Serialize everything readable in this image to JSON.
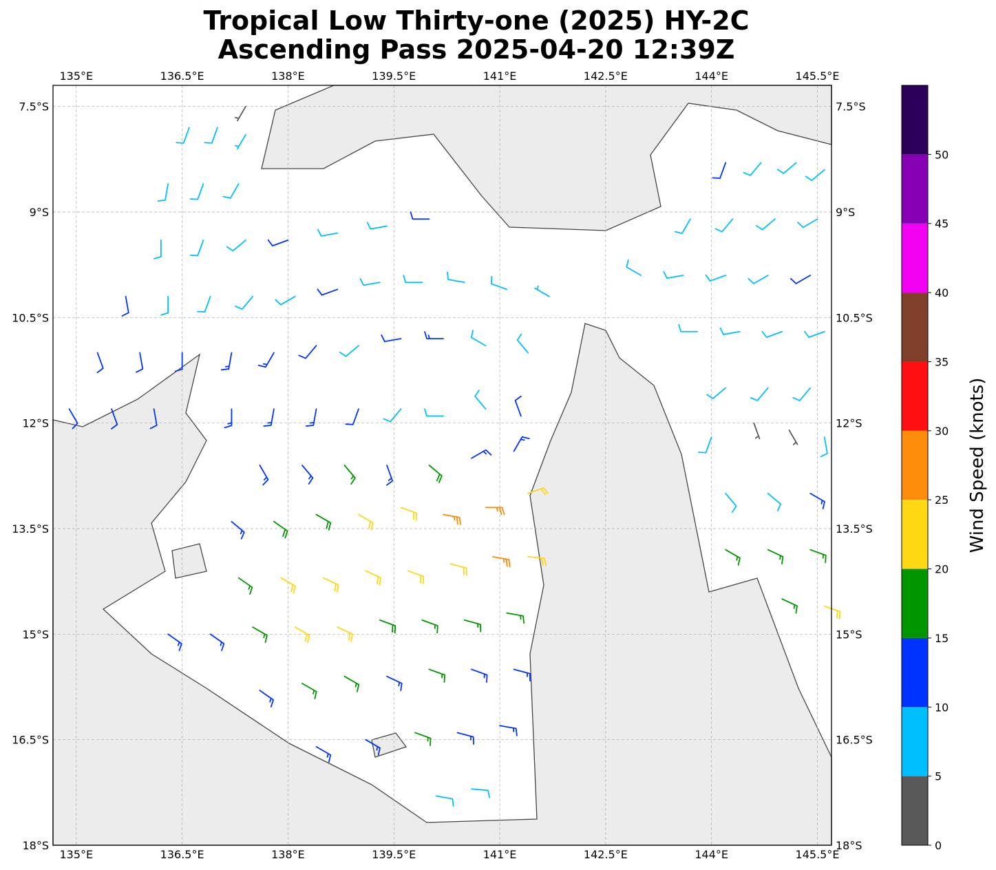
{
  "title_line1": "Tropical Low Thirty-one (2025) HY-2C",
  "title_line2": "Ascending Pass 2025-04-20 12:39Z",
  "map": {
    "lon_range": [
      134.67,
      145.7
    ],
    "lat_range": [
      -18.0,
      -7.2
    ],
    "lon_ticks": [
      "135°E",
      "136.5°E",
      "138°E",
      "139.5°E",
      "141°E",
      "142.5°E",
      "144°E",
      "145.5°E"
    ],
    "lat_ticks": [
      "7.5°S",
      "9°S",
      "10.5°S",
      "12°S",
      "13.5°S",
      "15°S",
      "16.5°S",
      "18°S"
    ],
    "grid": true,
    "land_color": "#ececec",
    "sea_color": "#ffffff",
    "coast_color": "#444444"
  },
  "colorbar": {
    "label": "Wind Speed (knots)",
    "ticks": [
      "0",
      "5",
      "10",
      "15",
      "20",
      "25",
      "30",
      "35",
      "40",
      "45",
      "50"
    ],
    "range": [
      0,
      55
    ],
    "colors": [
      "#595959",
      "#00bfff",
      "#0033ff",
      "#009600",
      "#ffd712",
      "#ff8c0a",
      "#ff0f12",
      "#7f3f2a",
      "#f200f2",
      "#8600b3",
      "#2c0059"
    ]
  },
  "chart_data": {
    "type": "wind-barbs",
    "units": "knots",
    "fields": [
      "lon",
      "lat",
      "speed_kt",
      "direction_from_deg"
    ],
    "barbs": [
      [
        137.4,
        -7.5,
        3,
        210
      ],
      [
        136.6,
        -7.8,
        8,
        200
      ],
      [
        137.0,
        -7.8,
        8,
        200
      ],
      [
        137.4,
        -7.9,
        7,
        210
      ],
      [
        136.3,
        -8.6,
        8,
        190
      ],
      [
        136.8,
        -8.6,
        8,
        200
      ],
      [
        137.3,
        -8.6,
        8,
        210
      ],
      [
        136.2,
        -9.4,
        9,
        180
      ],
      [
        136.8,
        -9.4,
        9,
        200
      ],
      [
        137.4,
        -9.4,
        9,
        230
      ],
      [
        138.0,
        -9.4,
        12,
        250
      ],
      [
        138.7,
        -9.3,
        9,
        260
      ],
      [
        139.4,
        -9.2,
        8,
        260
      ],
      [
        140.0,
        -9.1,
        12,
        270
      ],
      [
        135.7,
        -10.2,
        11,
        170
      ],
      [
        136.3,
        -10.2,
        9,
        180
      ],
      [
        136.9,
        -10.2,
        9,
        200
      ],
      [
        137.5,
        -10.2,
        9,
        220
      ],
      [
        138.1,
        -10.2,
        9,
        240
      ],
      [
        138.7,
        -10.1,
        10,
        250
      ],
      [
        139.3,
        -10.0,
        9,
        260
      ],
      [
        139.9,
        -10.0,
        9,
        270
      ],
      [
        140.5,
        -10.0,
        8,
        280
      ],
      [
        141.1,
        -10.1,
        8,
        290
      ],
      [
        141.7,
        -10.2,
        7,
        300
      ],
      [
        135.3,
        -11.0,
        12,
        160
      ],
      [
        135.9,
        -11.0,
        12,
        170
      ],
      [
        136.5,
        -11.0,
        10,
        180
      ],
      [
        137.2,
        -11.0,
        13,
        190
      ],
      [
        137.8,
        -11.0,
        13,
        210
      ],
      [
        138.4,
        -10.9,
        12,
        220
      ],
      [
        139.0,
        -10.9,
        9,
        230
      ],
      [
        139.6,
        -10.8,
        12,
        260
      ],
      [
        140.2,
        -10.8,
        13,
        270
      ],
      [
        140.8,
        -10.9,
        8,
        300
      ],
      [
        141.4,
        -11.0,
        8,
        320
      ],
      [
        134.9,
        -11.8,
        12,
        150
      ],
      [
        135.5,
        -11.8,
        12,
        160
      ],
      [
        136.1,
        -11.8,
        12,
        170
      ],
      [
        137.2,
        -11.8,
        13,
        180
      ],
      [
        137.8,
        -11.8,
        13,
        190
      ],
      [
        138.4,
        -11.8,
        13,
        190
      ],
      [
        139.0,
        -11.8,
        12,
        200
      ],
      [
        139.6,
        -11.8,
        8,
        220
      ],
      [
        140.2,
        -11.9,
        8,
        270
      ],
      [
        140.8,
        -11.8,
        8,
        320
      ],
      [
        141.3,
        -11.9,
        12,
        340
      ],
      [
        137.6,
        -12.6,
        13,
        150
      ],
      [
        138.2,
        -12.6,
        14,
        140
      ],
      [
        138.8,
        -12.6,
        17,
        140
      ],
      [
        139.4,
        -12.6,
        13,
        160
      ],
      [
        140.0,
        -12.6,
        18,
        130
      ],
      [
        140.6,
        -12.5,
        14,
        60
      ],
      [
        141.2,
        -12.4,
        14,
        30
      ],
      [
        137.2,
        -13.4,
        13,
        130
      ],
      [
        137.8,
        -13.4,
        18,
        125
      ],
      [
        138.4,
        -13.3,
        18,
        120
      ],
      [
        139.0,
        -13.3,
        22,
        120
      ],
      [
        139.6,
        -13.2,
        22,
        110
      ],
      [
        140.2,
        -13.3,
        27,
        100
      ],
      [
        140.8,
        -13.2,
        27,
        90
      ],
      [
        141.4,
        -13.0,
        22,
        70
      ],
      [
        137.3,
        -14.2,
        17,
        125
      ],
      [
        137.9,
        -14.2,
        22,
        120
      ],
      [
        138.5,
        -14.2,
        22,
        115
      ],
      [
        139.1,
        -14.1,
        22,
        115
      ],
      [
        139.7,
        -14.1,
        22,
        110
      ],
      [
        140.3,
        -14.0,
        22,
        105
      ],
      [
        140.9,
        -13.9,
        27,
        100
      ],
      [
        141.4,
        -13.9,
        22,
        95
      ],
      [
        136.3,
        -15.0,
        13,
        125
      ],
      [
        136.9,
        -15.0,
        13,
        125
      ],
      [
        137.5,
        -14.9,
        17,
        120
      ],
      [
        138.1,
        -14.9,
        22,
        120
      ],
      [
        138.7,
        -14.9,
        22,
        115
      ],
      [
        139.3,
        -14.8,
        18,
        110
      ],
      [
        139.9,
        -14.8,
        17,
        110
      ],
      [
        140.5,
        -14.8,
        17,
        105
      ],
      [
        141.1,
        -14.7,
        17,
        100
      ],
      [
        137.6,
        -15.8,
        13,
        125
      ],
      [
        138.2,
        -15.7,
        17,
        120
      ],
      [
        138.8,
        -15.6,
        17,
        120
      ],
      [
        139.4,
        -15.6,
        13,
        115
      ],
      [
        140.0,
        -15.5,
        17,
        110
      ],
      [
        140.6,
        -15.5,
        13,
        110
      ],
      [
        141.2,
        -15.5,
        13,
        105
      ],
      [
        138.4,
        -16.6,
        13,
        120
      ],
      [
        139.1,
        -16.5,
        13,
        120
      ],
      [
        139.8,
        -16.4,
        17,
        110
      ],
      [
        140.4,
        -16.4,
        13,
        105
      ],
      [
        141.0,
        -16.3,
        13,
        100
      ],
      [
        140.1,
        -17.3,
        8,
        100
      ],
      [
        140.6,
        -17.2,
        8,
        95
      ],
      [
        144.2,
        -8.3,
        12,
        200
      ],
      [
        144.7,
        -8.3,
        8,
        220
      ],
      [
        145.2,
        -8.3,
        8,
        230
      ],
      [
        145.6,
        -8.4,
        8,
        230
      ],
      [
        143.7,
        -9.1,
        8,
        210
      ],
      [
        144.3,
        -9.1,
        8,
        220
      ],
      [
        144.9,
        -9.1,
        8,
        230
      ],
      [
        145.5,
        -9.1,
        8,
        240
      ],
      [
        143.0,
        -9.9,
        8,
        300
      ],
      [
        143.6,
        -9.9,
        8,
        260
      ],
      [
        144.2,
        -9.9,
        8,
        250
      ],
      [
        144.8,
        -9.9,
        8,
        240
      ],
      [
        145.4,
        -9.9,
        12,
        240
      ],
      [
        143.8,
        -10.7,
        8,
        270
      ],
      [
        144.4,
        -10.7,
        8,
        260
      ],
      [
        145.0,
        -10.7,
        8,
        250
      ],
      [
        145.6,
        -10.7,
        8,
        250
      ],
      [
        144.2,
        -11.5,
        8,
        230
      ],
      [
        144.8,
        -11.5,
        8,
        220
      ],
      [
        145.4,
        -11.5,
        8,
        220
      ],
      [
        144.0,
        -12.2,
        8,
        200
      ],
      [
        144.6,
        -12.0,
        3,
        160
      ],
      [
        145.1,
        -12.1,
        3,
        150
      ],
      [
        145.6,
        -12.2,
        8,
        170
      ],
      [
        144.2,
        -13.0,
        8,
        140
      ],
      [
        144.8,
        -13.0,
        9,
        130
      ],
      [
        145.4,
        -13.0,
        13,
        120
      ],
      [
        144.2,
        -13.8,
        17,
        120
      ],
      [
        144.8,
        -13.8,
        17,
        115
      ],
      [
        145.4,
        -13.8,
        17,
        110
      ],
      [
        145.0,
        -14.5,
        17,
        115
      ],
      [
        145.6,
        -14.6,
        22,
        110
      ]
    ]
  }
}
